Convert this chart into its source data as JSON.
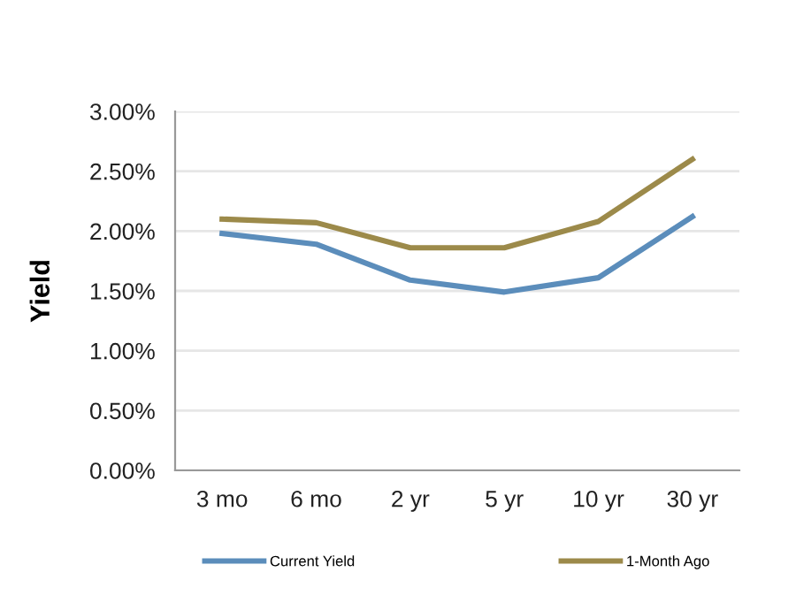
{
  "chart_data": {
    "type": "line",
    "ylabel": "Yield",
    "categories": [
      "3 mo",
      "6 mo",
      "2 yr",
      "5 yr",
      "10 yr",
      "30 yr"
    ],
    "series": [
      {
        "name": "Current Yield",
        "color": "#5b8dbb",
        "values": [
          1.98,
          1.89,
          1.59,
          1.49,
          1.61,
          2.12
        ]
      },
      {
        "name": "1-Month Ago",
        "color": "#9c8a4a",
        "values": [
          2.1,
          2.07,
          1.86,
          1.86,
          2.08,
          2.6
        ]
      }
    ],
    "ylim": [
      0,
      3
    ],
    "yticks": [
      {
        "value": 0,
        "label": "0.00%"
      },
      {
        "value": 0.5,
        "label": "0.50%"
      },
      {
        "value": 1,
        "label": "1.00%"
      },
      {
        "value": 1.5,
        "label": "1.50%"
      },
      {
        "value": 2,
        "label": "2.00%"
      },
      {
        "value": 2.5,
        "label": "2.50%"
      },
      {
        "value": 3,
        "label": "3.00%"
      }
    ],
    "grid": "y",
    "legend": "bottom",
    "marker": "none",
    "line_style": "solid"
  }
}
